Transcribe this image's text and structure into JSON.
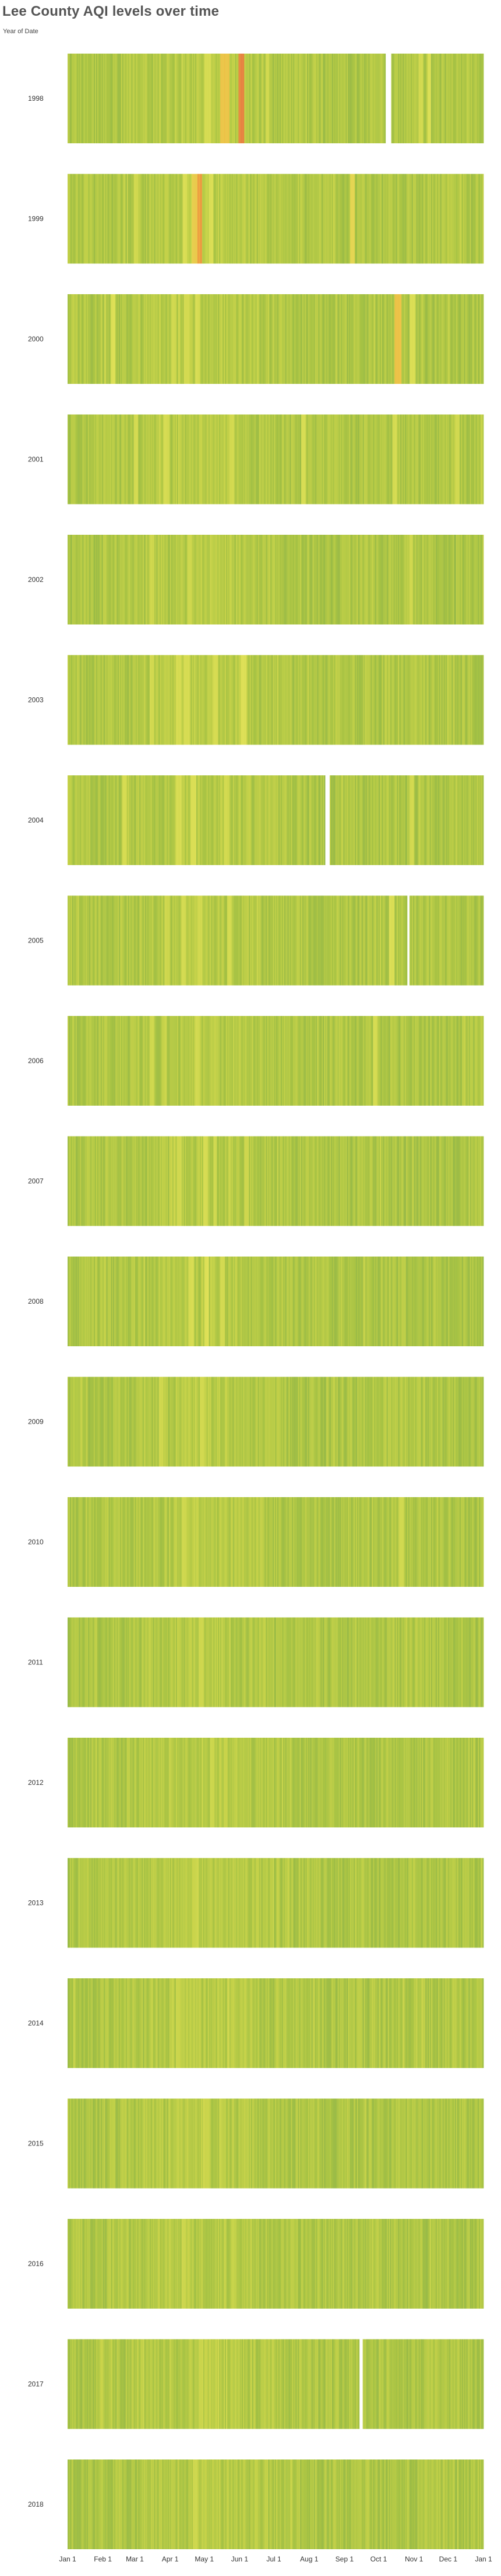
{
  "header": {
    "title": "Lee County AQI levels over time",
    "subtitle": "Year of Date"
  },
  "chart_data": {
    "type": "heatmap",
    "title": "Lee County AQI levels over time",
    "row_axis_label": "Year of Date",
    "years": [
      "1998",
      "1999",
      "2000",
      "2001",
      "2002",
      "2003",
      "2004",
      "2005",
      "2006",
      "2007",
      "2008",
      "2009",
      "2010",
      "2011",
      "2012",
      "2013",
      "2014",
      "2015",
      "2016",
      "2017",
      "2018"
    ],
    "x_tick_labels": [
      "Jan 1",
      "Feb 1",
      "Mar 1",
      "Apr 1",
      "May 1",
      "Jun 1",
      "Jul 1",
      "Aug 1",
      "Sep 1",
      "Oct 1",
      "Nov 1",
      "Dec 1",
      "Jan 1"
    ],
    "x_tick_days": [
      0,
      31,
      59,
      90,
      120,
      151,
      181,
      212,
      243,
      273,
      304,
      334,
      365
    ],
    "days_per_year": 365,
    "color_scale": [
      "#83ad4d",
      "#a6c244",
      "#c7d34a",
      "#e0e158",
      "#f2b441",
      "#dc5a43"
    ],
    "aqi_scale_range": [
      0,
      140
    ],
    "missing_days": {
      "1998": [
        [
          279,
          283
        ]
      ],
      "2004": [
        [
          226,
          229
        ]
      ],
      "2005": [
        [
          298,
          299
        ]
      ],
      "2017": [
        [
          256,
          258
        ]
      ]
    },
    "elevated_days": {
      "1998": [
        [
          120,
          125,
          75
        ],
        [
          134,
          141,
          105
        ],
        [
          150,
          154,
          128
        ],
        [
          151,
          153,
          140
        ],
        [
          174,
          176,
          70
        ],
        [
          308,
          311,
          72
        ],
        [
          316,
          318,
          80
        ]
      ],
      "1999": [
        [
          58,
          61,
          70
        ],
        [
          101,
          104,
          80
        ],
        [
          109,
          113,
          100
        ],
        [
          114,
          117,
          120
        ],
        [
          124,
          127,
          80
        ],
        [
          248,
          251,
          95
        ]
      ],
      "2000": [
        [
          38,
          41,
          85
        ],
        [
          91,
          94,
          70
        ],
        [
          102,
          106,
          72
        ],
        [
          112,
          115,
          78
        ],
        [
          287,
          292,
          105
        ],
        [
          288,
          290,
          140
        ],
        [
          300,
          304,
          80
        ]
      ],
      "2001": [
        [
          58,
          61,
          72
        ],
        [
          84,
          88,
          75
        ],
        [
          142,
          145,
          72
        ],
        [
          205,
          208,
          78
        ],
        [
          285,
          288,
          75
        ],
        [
          340,
          343,
          70
        ]
      ],
      "2002": [
        [
          72,
          75,
          68
        ],
        [
          105,
          108,
          68
        ],
        [
          300,
          302,
          70
        ]
      ],
      "2003": [
        [
          72,
          75,
          72
        ],
        [
          95,
          99,
          75
        ],
        [
          102,
          106,
          78
        ],
        [
          128,
          131,
          75
        ],
        [
          152,
          156,
          82
        ]
      ],
      "2004": [
        [
          48,
          51,
          75
        ],
        [
          95,
          99,
          78
        ],
        [
          108,
          112,
          80
        ],
        [
          137,
          141,
          70
        ],
        [
          300,
          303,
          72
        ]
      ],
      "2005": [
        [
          85,
          88,
          68
        ],
        [
          100,
          103,
          72
        ],
        [
          114,
          117,
          70
        ],
        [
          140,
          143,
          72
        ],
        [
          282,
          286,
          80
        ]
      ],
      "2006": [
        [
          72,
          75,
          68
        ],
        [
          112,
          115,
          70
        ],
        [
          268,
          271,
          74
        ]
      ],
      "2007": [
        [
          96,
          99,
          70
        ],
        [
          119,
          122,
          76
        ],
        [
          128,
          130,
          70
        ],
        [
          155,
          158,
          68
        ]
      ],
      "2008": [
        [
          106,
          110,
          78
        ],
        [
          120,
          123,
          84
        ],
        [
          134,
          137,
          72
        ]
      ],
      "2009": [
        [
          80,
          83,
          68
        ],
        [
          116,
          119,
          72
        ]
      ],
      "2010": [
        [
          100,
          103,
          66
        ],
        [
          291,
          294,
          72
        ]
      ],
      "2011": [
        [
          115,
          118,
          66
        ]
      ],
      "2012": [
        [
          125,
          128,
          66
        ]
      ],
      "2013": [
        [
          110,
          113,
          64
        ]
      ],
      "2014": [
        [
          95,
          98,
          64
        ]
      ],
      "2015": [
        [
          120,
          123,
          64
        ]
      ],
      "2016": [
        [
          100,
          103,
          64
        ]
      ],
      "2017": [
        [
          115,
          118,
          64
        ]
      ],
      "2018": [
        [
          110,
          113,
          66
        ]
      ]
    },
    "legend": "none"
  }
}
